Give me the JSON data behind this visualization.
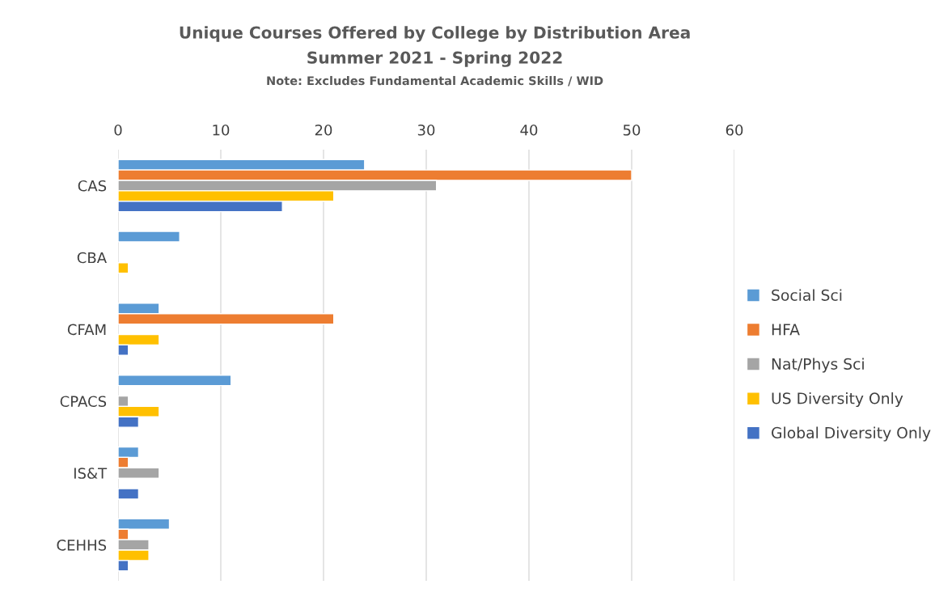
{
  "chart_data": {
    "type": "bar",
    "orientation": "horizontal",
    "title": "Unique Courses Offered by College by Distribution Area",
    "subtitle": "Summer 2021 - Spring 2022",
    "annotations": [
      "Note: Excludes Fundamental Academic Skills / WID"
    ],
    "categories": [
      "CAS",
      "CBA",
      "CFAM",
      "CPACS",
      "IS&T",
      "CEHHS"
    ],
    "series": [
      {
        "name": "Social Sci",
        "color": "#5b9bd5",
        "values": [
          24,
          6,
          4,
          11,
          2,
          5
        ]
      },
      {
        "name": "HFA",
        "color": "#ed7d31",
        "values": [
          50,
          null,
          21,
          null,
          1,
          1
        ]
      },
      {
        "name": "Nat/Phys Sci",
        "color": "#a5a5a5",
        "values": [
          31,
          null,
          null,
          1,
          4,
          3
        ]
      },
      {
        "name": "US Diversity Only",
        "color": "#ffc000",
        "values": [
          21,
          1,
          4,
          4,
          null,
          3
        ]
      },
      {
        "name": "Global Diversity Only",
        "color": "#4472c4",
        "values": [
          16,
          null,
          1,
          2,
          2,
          1
        ]
      }
    ],
    "xlim": [
      0,
      60
    ],
    "xticks": [
      0,
      10,
      20,
      30,
      40,
      50,
      60
    ],
    "grid": "x",
    "legend": "right"
  }
}
